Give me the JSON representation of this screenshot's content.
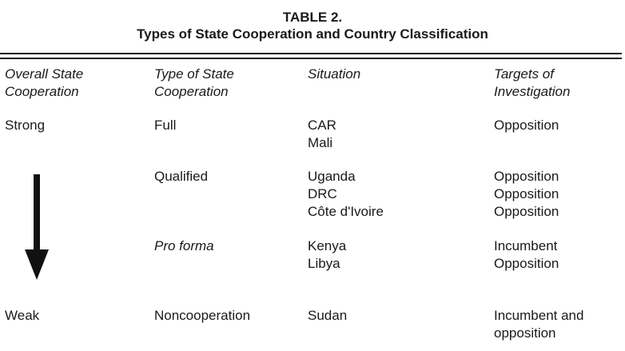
{
  "table": {
    "title_line1": "TABLE 2.",
    "title_line2": "Types of State Cooperation and Country Classification",
    "headers": {
      "col1_line1": "Overall State",
      "col1_line2": "Cooperation",
      "col2_line1": "Type of State",
      "col2_line2": "Cooperation",
      "col3": "Situation",
      "col4_line1": "Targets of",
      "col4_line2": "Investigation"
    },
    "scale": {
      "top": "Strong",
      "bottom": "Weak",
      "arrow_icon": "arrow-down-icon"
    },
    "rows": [
      {
        "type": "Full",
        "situations": [
          "CAR",
          "Mali"
        ],
        "targets": [
          "Opposition"
        ]
      },
      {
        "type": "Qualified",
        "situations": [
          "Uganda",
          "DRC",
          "Côte d'Ivoire"
        ],
        "targets": [
          "Opposition",
          "Opposition",
          "Opposition"
        ]
      },
      {
        "type": "Pro forma",
        "situations": [
          "Kenya",
          "Libya"
        ],
        "targets": [
          "Incumbent",
          "Opposition"
        ]
      },
      {
        "type": "Noncooperation",
        "situations": [
          "Sudan"
        ],
        "targets": [
          "Incumbent and",
          "opposition"
        ]
      }
    ]
  }
}
